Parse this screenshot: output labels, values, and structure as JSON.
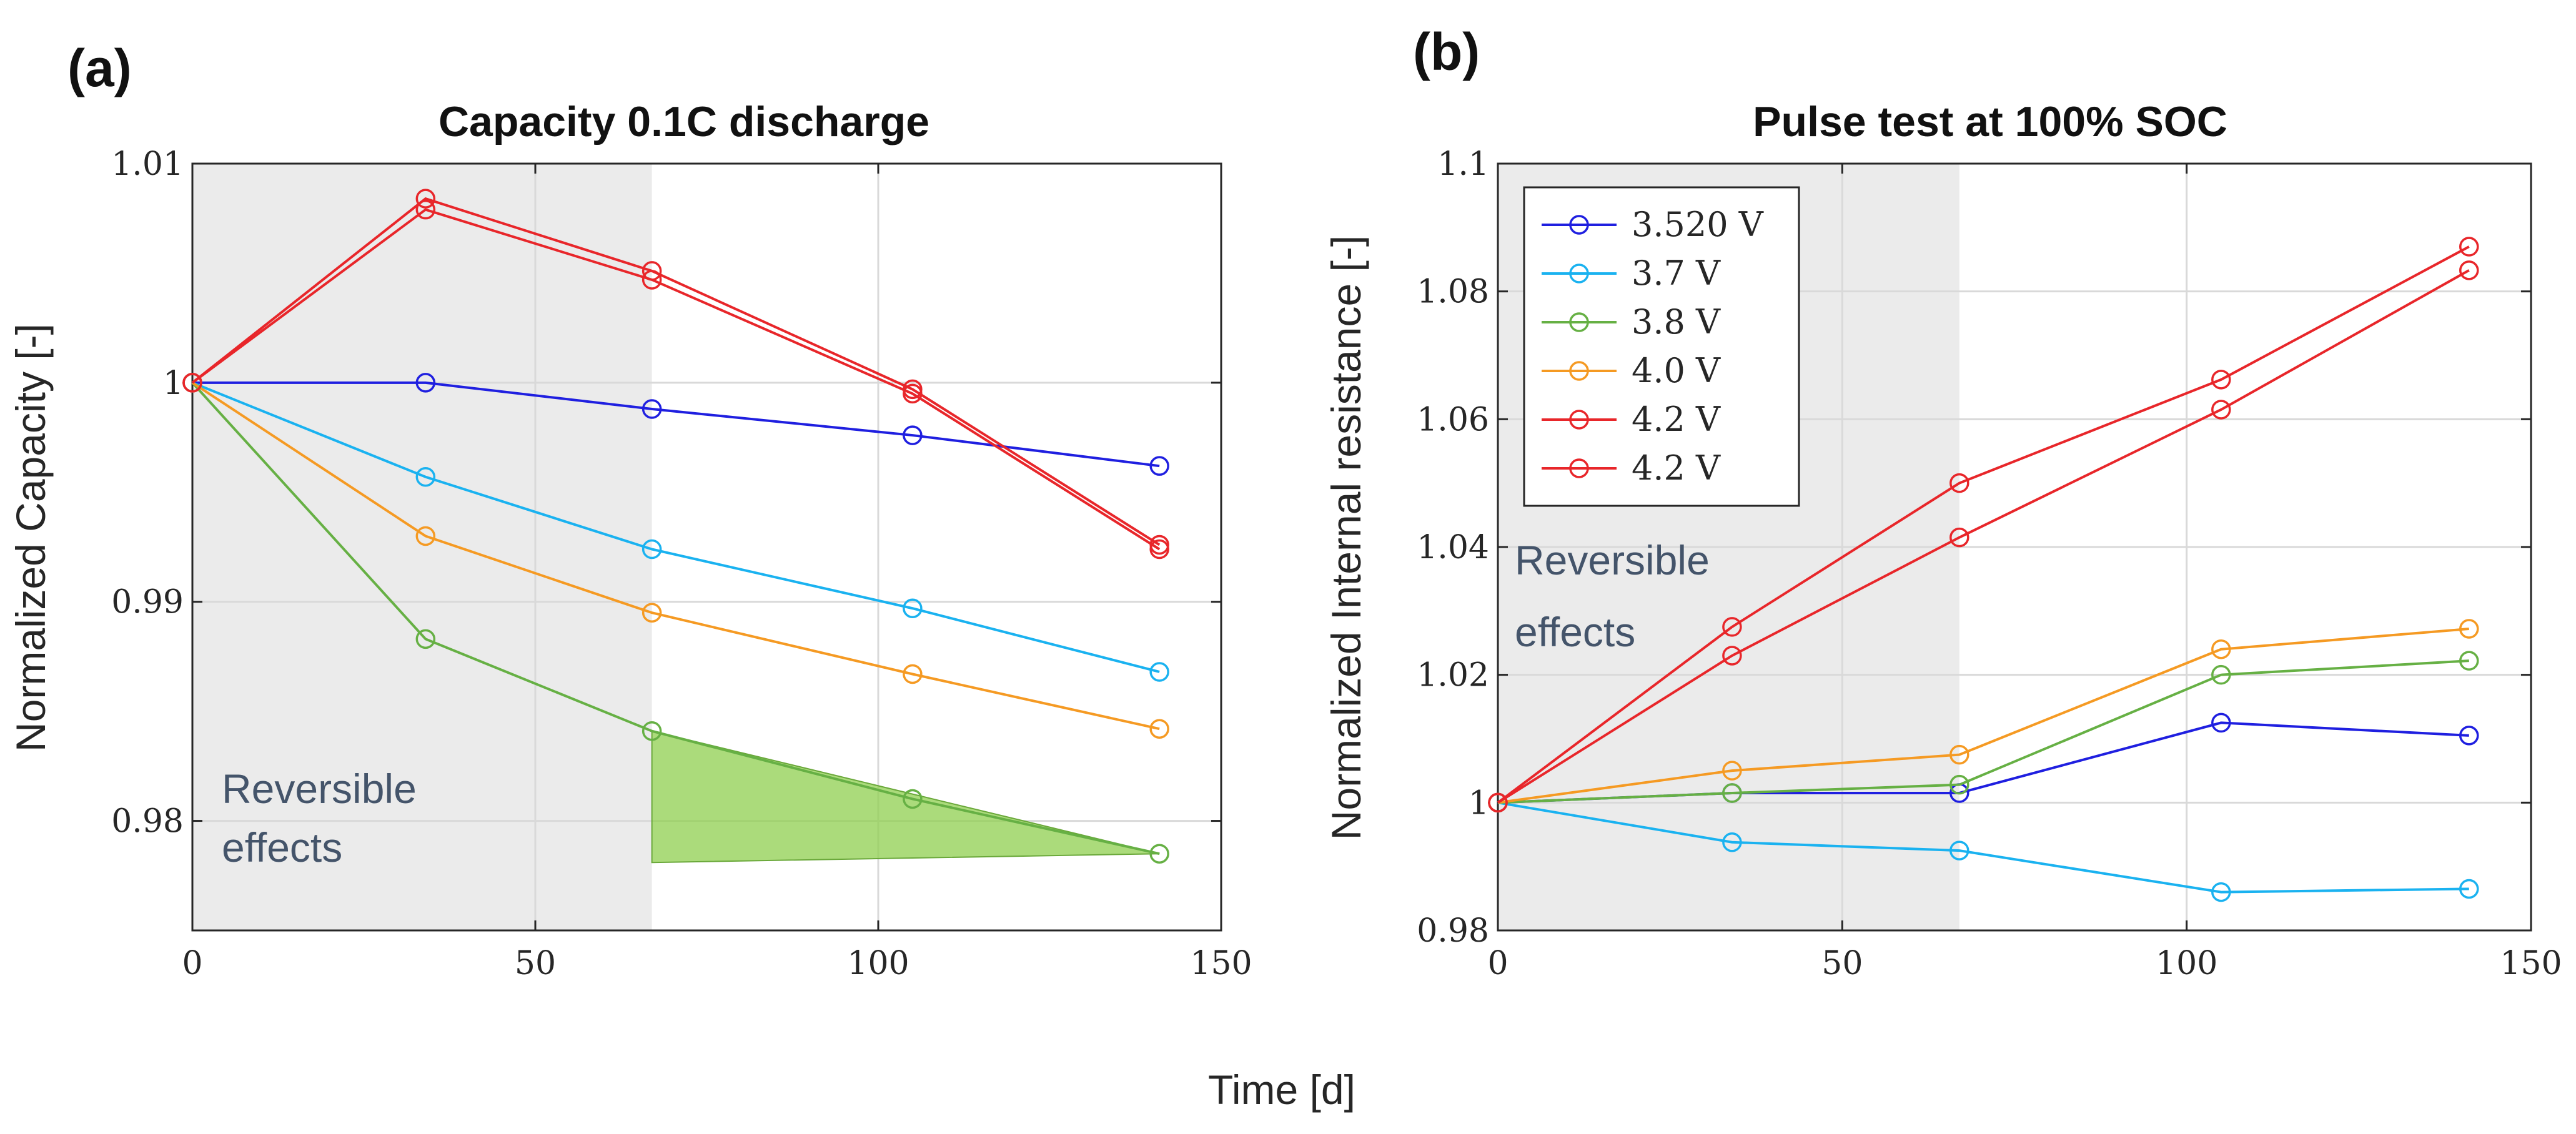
{
  "figure": {
    "xlabel": "Time [d]"
  },
  "chart_data": [
    {
      "id": "a",
      "panel_label": "(a)",
      "type": "line",
      "title": "Capacity 0.1C discharge",
      "ylabel": "Normalized Capacity [-]",
      "xlabel": "",
      "xlim": [
        0,
        150
      ],
      "ylim": [
        0.975,
        1.01
      ],
      "xticks": [
        0,
        50,
        100,
        150
      ],
      "xtick_labels": [
        "0",
        "50",
        "100",
        "150"
      ],
      "yticks": [
        0.98,
        0.99,
        1,
        1.01
      ],
      "ytick_labels": [
        "0.98",
        "0.99",
        "1",
        "1.01"
      ],
      "grid": true,
      "shaded_region": {
        "x": [
          0,
          67
        ],
        "label": "Reversible effects",
        "label_lines": [
          "Reversible",
          "effects"
        ]
      },
      "fill_triangle": {
        "points": [
          [
            67,
            0.9841
          ],
          [
            141,
            0.9785
          ],
          [
            67,
            0.9781
          ]
        ],
        "color": "#8fcf4f"
      },
      "series": [
        {
          "name": "3.520 V",
          "color": "#1f1fe0",
          "x": [
            0,
            34,
            67,
            105,
            141
          ],
          "y": [
            1.0,
            1.0,
            0.9988,
            0.9976,
            0.9962
          ]
        },
        {
          "name": "3.7 V",
          "color": "#1ab2f0",
          "x": [
            0,
            34,
            67,
            105,
            141
          ],
          "y": [
            1.0,
            0.9957,
            0.9924,
            0.9897,
            0.9868
          ]
        },
        {
          "name": "3.8 V",
          "color": "#66b044",
          "x": [
            0,
            34,
            67,
            105,
            141
          ],
          "y": [
            1.0,
            0.9883,
            0.9841,
            0.981,
            0.9785
          ]
        },
        {
          "name": "4.0 V",
          "color": "#f59a23",
          "x": [
            0,
            34,
            67,
            105,
            141
          ],
          "y": [
            1.0,
            0.993,
            0.9895,
            0.9867,
            0.9842
          ]
        },
        {
          "name": "4.2 V",
          "color": "#e8262a",
          "x": [
            0,
            34,
            67,
            105,
            141
          ],
          "y": [
            1.0,
            1.0084,
            1.0051,
            0.9997,
            0.9926
          ]
        },
        {
          "name": "4.2 V",
          "color": "#e8262a",
          "x": [
            0,
            34,
            67,
            105,
            141
          ],
          "y": [
            1.0,
            1.0079,
            1.0047,
            0.9995,
            0.9924
          ]
        }
      ]
    },
    {
      "id": "b",
      "panel_label": "(b)",
      "type": "line",
      "title": "Pulse test at 100% SOC",
      "ylabel": "Normalized Internal resistance [-]",
      "xlabel": "",
      "xlim": [
        0,
        150
      ],
      "ylim": [
        0.98,
        1.1
      ],
      "xticks": [
        0,
        50,
        100,
        150
      ],
      "xtick_labels": [
        "0",
        "50",
        "100",
        "150"
      ],
      "yticks": [
        0.98,
        1,
        1.02,
        1.04,
        1.06,
        1.08,
        1.1
      ],
      "ytick_labels": [
        "0.98",
        "1",
        "1.02",
        "1.04",
        "1.06",
        "1.08",
        "1.1"
      ],
      "grid": true,
      "legend_position": "top-left",
      "shaded_region": {
        "x": [
          0,
          67
        ],
        "label": "Reversible effects",
        "label_lines": [
          "Reversible",
          "effects"
        ]
      },
      "series": [
        {
          "name": "3.520 V",
          "color": "#1f1fe0",
          "x": [
            0,
            34,
            67,
            105,
            141
          ],
          "y": [
            1.0,
            1.0015,
            1.0015,
            1.0125,
            1.0105
          ]
        },
        {
          "name": "3.7 V",
          "color": "#1ab2f0",
          "x": [
            0,
            34,
            67,
            105,
            141
          ],
          "y": [
            1.0,
            0.9938,
            0.9925,
            0.986,
            0.9865
          ]
        },
        {
          "name": "3.8 V",
          "color": "#66b044",
          "x": [
            0,
            34,
            67,
            105,
            141
          ],
          "y": [
            1.0,
            1.0015,
            1.0028,
            1.02,
            1.0222
          ]
        },
        {
          "name": "4.0 V",
          "color": "#f59a23",
          "x": [
            0,
            34,
            67,
            105,
            141
          ],
          "y": [
            1.0,
            1.005,
            1.0075,
            1.024,
            1.0272
          ]
        },
        {
          "name": "4.2 V",
          "color": "#e8262a",
          "x": [
            0,
            34,
            67,
            105,
            141
          ],
          "y": [
            1.0,
            1.0275,
            1.05,
            1.0662,
            1.087
          ]
        },
        {
          "name": "4.2 V",
          "color": "#e8262a",
          "x": [
            0,
            34,
            67,
            105,
            141
          ],
          "y": [
            1.0,
            1.023,
            1.0415,
            1.0615,
            1.0833
          ]
        }
      ]
    }
  ]
}
